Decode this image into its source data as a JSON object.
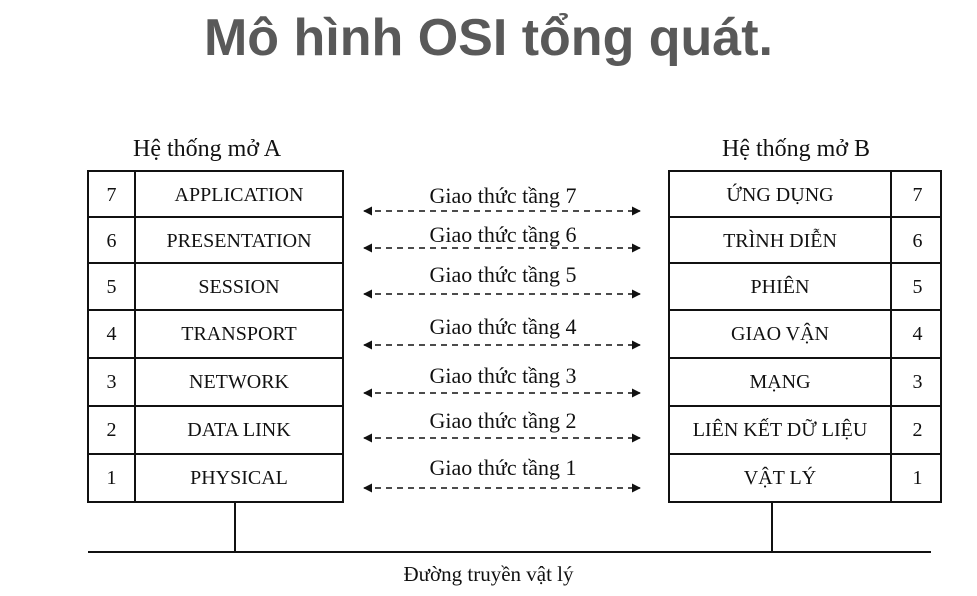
{
  "title": "Mô hình OSI tổng quát.",
  "system_a": {
    "label": "Hệ thống mở A",
    "layers": [
      {
        "num": "7",
        "name": "APPLICATION"
      },
      {
        "num": "6",
        "name": "PRESENTATION"
      },
      {
        "num": "5",
        "name": "SESSION"
      },
      {
        "num": "4",
        "name": "TRANSPORT"
      },
      {
        "num": "3",
        "name": "NETWORK"
      },
      {
        "num": "2",
        "name": "DATA LINK"
      },
      {
        "num": "1",
        "name": "PHYSICAL"
      }
    ]
  },
  "system_b": {
    "label": "Hệ thống mở B",
    "layers": [
      {
        "num": "7",
        "name": "ỨNG DỤNG"
      },
      {
        "num": "6",
        "name": "TRÌNH DIỄN"
      },
      {
        "num": "5",
        "name": "PHIÊN"
      },
      {
        "num": "4",
        "name": "GIAO VẬN"
      },
      {
        "num": "3",
        "name": "MẠNG"
      },
      {
        "num": "2",
        "name": "LIÊN KẾT DỮ LIỆU"
      },
      {
        "num": "1",
        "name": "VẬT LÝ"
      }
    ]
  },
  "protocols": [
    "Giao thức tầng 7",
    "Giao thức tầng 6",
    "Giao thức tầng 5",
    "Giao thức tầng 4",
    "Giao thức tầng 3",
    "Giao thức tầng 2",
    "Giao thức tầng 1"
  ],
  "physical_medium": "Đường truyền vật lý"
}
